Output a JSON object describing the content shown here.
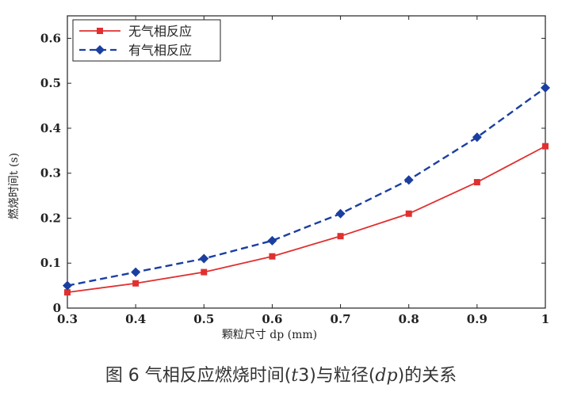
{
  "chart_data": {
    "type": "line",
    "xlabel": "颗粒尺寸 dp (mm)",
    "ylabel": "燃烧时间t (s)",
    "x": [
      0.3,
      0.4,
      0.5,
      0.6,
      0.7,
      0.8,
      0.9,
      1.0
    ],
    "xlim": [
      0.3,
      1.0
    ],
    "ylim": [
      0,
      0.65
    ],
    "x_ticks": [
      "0.3",
      "0.4",
      "0.5",
      "0.6",
      "0.7",
      "0.8",
      "0.9",
      "1"
    ],
    "y_ticks": [
      "0",
      "0.1",
      "0.2",
      "0.3",
      "0.4",
      "0.5",
      "0.6"
    ],
    "legend_position": "top-left",
    "series": [
      {
        "name": "无气相反应",
        "values": [
          0.035,
          0.055,
          0.08,
          0.115,
          0.16,
          0.21,
          0.28,
          0.36
        ],
        "color": "#e03030",
        "style": "solid",
        "marker": "square"
      },
      {
        "name": "有气相反应",
        "values": [
          0.05,
          0.08,
          0.11,
          0.15,
          0.21,
          0.285,
          0.38,
          0.49
        ],
        "color": "#1a3fa0",
        "style": "dashed",
        "marker": "diamond"
      }
    ]
  },
  "caption": {
    "prefix": "图 6 气相反应燃烧时间(",
    "var1": "t",
    "num1": "3",
    "middle": ")与粒径(",
    "var2": "dp",
    "suffix": ")的关系"
  }
}
